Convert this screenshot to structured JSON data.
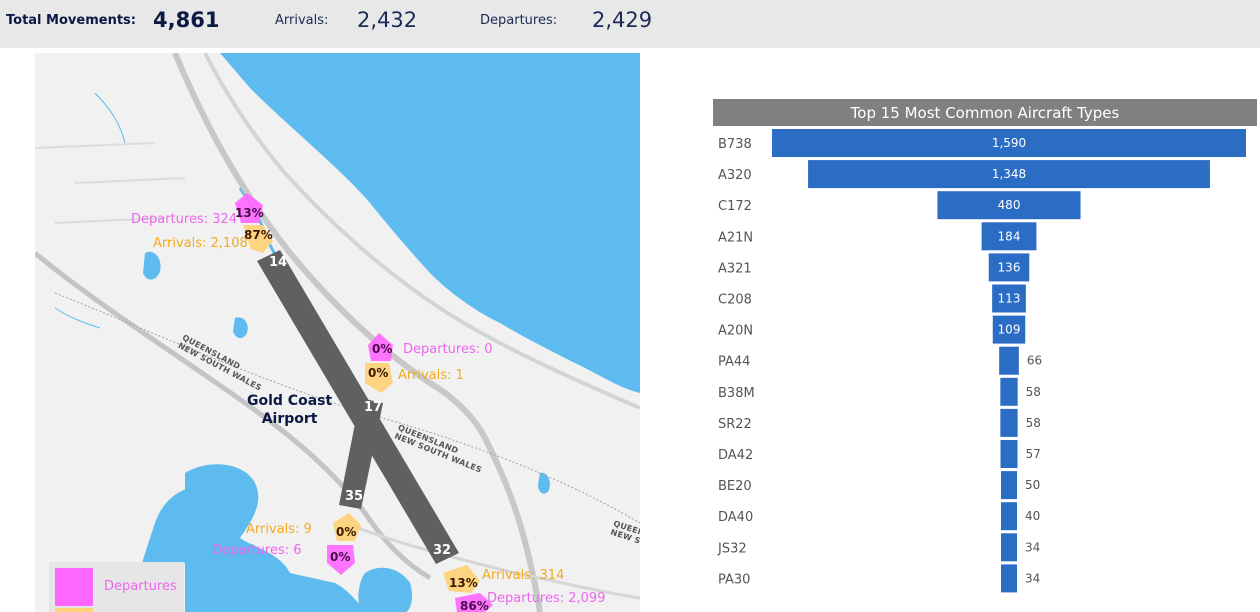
{
  "header": {
    "total_label": "Total Movements:",
    "total_value": "4,861",
    "arrivals_label": "Arrivals:",
    "arrivals_value": "2,432",
    "departures_label": "Departures:",
    "departures_value": "2,429"
  },
  "map": {
    "airport_line1": "Gold Coast",
    "airport_line2": "Airport",
    "runway_ends": [
      "14",
      "17",
      "35",
      "32"
    ],
    "region_label_1_line1": "QUEENSLAND",
    "region_label_1_line2": "NEW SOUTH WALES",
    "region_label_2_line1": "QUEENSLAND",
    "region_label_2_line2": "NEW SOUTH WALES",
    "region_label_3_line1": "QUEEN",
    "region_label_3_line2": "NEW SOUTH",
    "markers": [
      {
        "runway": "14",
        "dep_label": "Departures: 324",
        "arr_label": "Arrivals: 2,108",
        "dep_pct": "13%",
        "arr_pct": "87%"
      },
      {
        "runway": "17",
        "dep_label": "Departures: 0",
        "arr_label": "Arrivals: 1",
        "dep_pct": "0%",
        "arr_pct": "0%"
      },
      {
        "runway": "35",
        "dep_label": "Departures: 6",
        "arr_label": "Arrivals: 9",
        "dep_pct": "0%",
        "arr_pct": "0%"
      },
      {
        "runway": "32",
        "dep_label": "Departures: 2,099",
        "arr_label": "Arrivals: 314",
        "dep_pct": "86%",
        "arr_pct": "13%"
      }
    ],
    "colors": {
      "water": "#5dbbef",
      "land": "#f1f1f1",
      "runway": "#606060",
      "departures": "#ff66ff",
      "arrivals": "#ffd27a"
    }
  },
  "legend": {
    "departures_label": "Departures"
  },
  "chart_data": {
    "type": "bar",
    "title": "Top 15 Most Common Aircraft Types",
    "categories": [
      "B738",
      "A320",
      "C172",
      "A21N",
      "A321",
      "C208",
      "A20N",
      "PA44",
      "B38M",
      "SR22",
      "DA42",
      "BE20",
      "DA40",
      "JS32",
      "PA30"
    ],
    "values": [
      1590,
      1348,
      480,
      184,
      136,
      113,
      109,
      66,
      58,
      58,
      57,
      50,
      40,
      34,
      34
    ],
    "value_labels": [
      "1,590",
      "1,348",
      "480",
      "184",
      "136",
      "113",
      "109",
      "66",
      "58",
      "58",
      "57",
      "50",
      "40",
      "34",
      "34"
    ],
    "orientation": "horizontal-centered",
    "bar_color": "#2b6cc4",
    "xlabel": "",
    "ylabel": ""
  }
}
